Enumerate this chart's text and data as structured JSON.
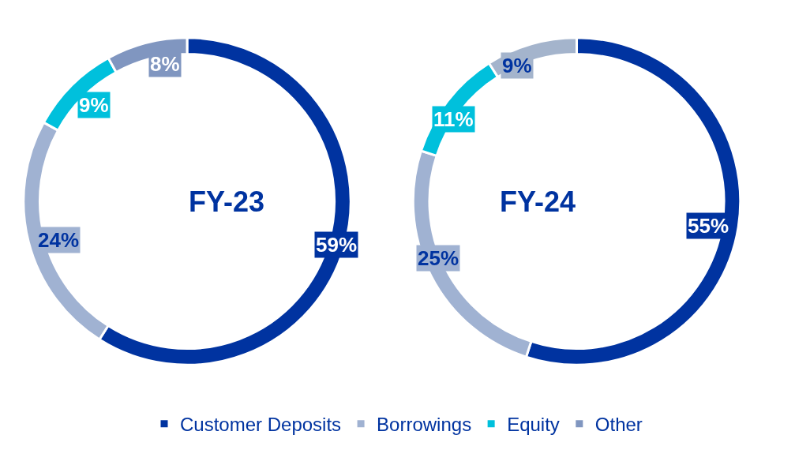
{
  "chart_data": [
    {
      "type": "donut",
      "title": "FY-23",
      "categories": [
        "Customer Deposits",
        "Borrowings",
        "Equity",
        "Other"
      ],
      "values": [
        59,
        24,
        9,
        8
      ],
      "colors": [
        "#0033a0",
        "#a0b2d2",
        "#00c0dc",
        "#8096c0"
      ],
      "value_labels": [
        "59%",
        "24%",
        "9%",
        "8%"
      ],
      "legend": "bottom"
    },
    {
      "type": "donut",
      "title": "FY-24",
      "categories": [
        null,
        null,
        null,
        null
      ],
      "values": [
        55,
        25,
        11,
        9
      ],
      "colors": [
        "#0033a0",
        "#a0b2d2",
        "#00c0dc",
        "#a4b4cc"
      ],
      "value_labels": [
        "55%",
        "25%",
        "11%",
        "9%"
      ]
    }
  ]
}
